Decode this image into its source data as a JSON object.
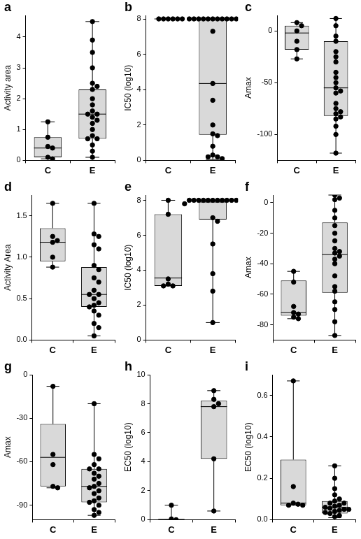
{
  "chart_data": [
    {
      "type": "box",
      "title": "a",
      "y_label": "Activity area",
      "categories": [
        "C",
        "E"
      ],
      "color": "#d9d9d9",
      "grid": false,
      "ylim": [
        0,
        4.7
      ],
      "yticks": [
        0,
        1,
        2,
        3,
        4
      ],
      "boxes": [
        {
          "min": 0.05,
          "q1": 0.1,
          "median": 0.4,
          "q3": 0.75,
          "max": 1.25
        },
        {
          "min": 0.1,
          "q1": 0.7,
          "median": 1.5,
          "q3": 2.3,
          "max": 4.5
        }
      ],
      "points": [
        [
          1.25,
          0.75,
          0.45,
          0.4,
          0.1,
          0.05
        ],
        [
          4.5,
          3.9,
          3.5,
          3.0,
          2.5,
          2.4,
          2.3,
          2.0,
          1.8,
          1.6,
          1.5,
          1.5,
          1.4,
          1.3,
          1.2,
          1.0,
          0.8,
          0.7,
          0.7,
          0.5,
          0.3,
          0.1
        ]
      ]
    },
    {
      "type": "box",
      "title": "b",
      "y_label": "IC50 (log10)",
      "categories": [
        "C",
        "E"
      ],
      "color": "#d9d9d9",
      "grid": false,
      "ylim": [
        0,
        8.2
      ],
      "yticks": [
        0,
        2,
        4,
        6,
        8
      ],
      "boxes": [
        {
          "min": 8,
          "q1": 8,
          "median": 8,
          "q3": 8,
          "max": 8
        },
        {
          "min": 0.05,
          "q1": 1.45,
          "median": 4.35,
          "q3": 8,
          "max": 8
        }
      ],
      "points": [
        [
          8,
          8,
          8,
          8,
          8,
          8
        ],
        [
          8,
          8,
          8,
          8,
          8,
          8,
          8,
          8,
          8,
          8,
          8,
          7.3,
          4.35,
          3.4,
          2.0,
          1.5,
          1.4,
          0.8,
          0.3,
          0.2,
          0.2,
          0.1
        ]
      ]
    },
    {
      "type": "box",
      "title": "c",
      "y_label": "Amax",
      "categories": [
        "C",
        "E"
      ],
      "color": "#d9d9d9",
      "grid": false,
      "ylim": [
        -125,
        15
      ],
      "yticks": [
        -100,
        -50,
        0
      ],
      "boxes": [
        {
          "min": -27,
          "q1": -18,
          "median": -2,
          "q3": 5,
          "max": 8
        },
        {
          "min": -118,
          "q1": -82,
          "median": -55,
          "q3": -10,
          "max": 12
        }
      ],
      "points": [
        [
          8,
          5,
          0,
          -10,
          -18,
          -27
        ],
        [
          12,
          5,
          -5,
          -10,
          -20,
          -25,
          -30,
          -40,
          -45,
          -50,
          -55,
          -58,
          -60,
          -70,
          -75,
          -78,
          -80,
          -83,
          -85,
          -92,
          -100,
          -118
        ]
      ]
    },
    {
      "type": "box",
      "title": "d",
      "y_label": "Activity Area",
      "categories": [
        "C",
        "E"
      ],
      "color": "#d9d9d9",
      "grid": false,
      "ylim": [
        0,
        1.75
      ],
      "yticks": [
        {
          "value": 0,
          "label": "0.0"
        },
        0.5,
        {
          "value": 1,
          "label": "1.0"
        },
        1.5
      ],
      "boxes": [
        {
          "min": 0.88,
          "q1": 0.95,
          "median": 1.18,
          "q3": 1.35,
          "max": 1.65
        },
        {
          "min": 0.05,
          "q1": 0.4,
          "median": 0.55,
          "q3": 0.88,
          "max": 1.65
        }
      ],
      "points": [
        [
          1.65,
          1.25,
          1.2,
          1.18,
          1.0,
          0.88
        ],
        [
          1.65,
          1.28,
          1.25,
          1.15,
          1.1,
          0.9,
          0.85,
          0.75,
          0.7,
          0.6,
          0.55,
          0.55,
          0.5,
          0.45,
          0.42,
          0.4,
          0.35,
          0.3,
          0.2,
          0.15,
          0.05
        ]
      ]
    },
    {
      "type": "box",
      "title": "e",
      "y_label": "IC50 (log10)",
      "categories": [
        "C",
        "E"
      ],
      "color": "#d9d9d9",
      "grid": false,
      "ylim": [
        0,
        8.3
      ],
      "yticks": [
        0,
        2,
        4,
        6,
        8
      ],
      "boxes": [
        {
          "min": 3.1,
          "q1": 3.1,
          "median": 3.55,
          "q3": 7.2,
          "max": 8
        },
        {
          "min": 1.0,
          "q1": 6.9,
          "median": 7.9,
          "q3": 8,
          "max": 8
        }
      ],
      "points": [
        [
          8.0,
          7.2,
          3.5,
          3.2,
          3.1,
          3.1
        ],
        [
          8,
          8,
          8,
          8,
          8,
          8,
          8,
          8,
          8,
          8,
          8,
          8,
          7.8,
          7.0,
          6.8,
          5.5,
          3.8,
          2.8,
          1.0
        ]
      ]
    },
    {
      "type": "box",
      "title": "f",
      "y_label": "Amax",
      "categories": [
        "C",
        "E"
      ],
      "color": "#d9d9d9",
      "grid": false,
      "ylim": [
        -90,
        5
      ],
      "yticks": [
        -80,
        -60,
        -40,
        -20,
        0
      ],
      "boxes": [
        {
          "min": -76,
          "q1": -74,
          "median": -72,
          "q3": -51,
          "max": -45
        },
        {
          "min": -87,
          "q1": -59,
          "median": -34,
          "q3": -13,
          "max": 5
        }
      ],
      "points": [
        [
          -45,
          -52,
          -68,
          -72,
          -73,
          -75,
          -76
        ],
        [
          5,
          3,
          2,
          -5,
          -10,
          -15,
          -20,
          -25,
          -30,
          -32,
          -33,
          -35,
          -37,
          -40,
          -48,
          -55,
          -58,
          -65,
          -70,
          -78,
          -87
        ]
      ]
    },
    {
      "type": "box",
      "title": "g",
      "y_label": "Amax",
      "categories": [
        "C",
        "E"
      ],
      "color": "#d9d9d9",
      "grid": false,
      "ylim": [
        -100,
        0
      ],
      "yticks": [
        -90,
        -60,
        -30,
        0
      ],
      "boxes": [
        {
          "min": -78,
          "q1": -77,
          "median": -57,
          "q3": -34,
          "max": -8
        },
        {
          "min": -97,
          "q1": -88,
          "median": -77,
          "q3": -65,
          "max": -20
        }
      ],
      "points": [
        [
          -8,
          -55,
          -62,
          -77,
          -78
        ],
        [
          -20,
          -55,
          -58,
          -62,
          -65,
          -65,
          -68,
          -70,
          -72,
          -75,
          -77,
          -78,
          -80,
          -82,
          -85,
          -87,
          -88,
          -90,
          -93,
          -95,
          -97
        ]
      ]
    },
    {
      "type": "box",
      "title": "h",
      "y_label": "EC50 (log10)",
      "categories": [
        "C",
        "E"
      ],
      "color": "#d9d9d9",
      "grid": false,
      "ylim": [
        0,
        10
      ],
      "yticks": [
        0,
        2,
        4,
        6,
        8,
        10
      ],
      "boxes": [
        {
          "min": 0,
          "q1": 0,
          "median": 0,
          "q3": 0.05,
          "max": 1.0
        },
        {
          "min": 0.6,
          "q1": 4.2,
          "median": 7.8,
          "q3": 8.2,
          "max": 8.9
        }
      ],
      "points": [
        [
          1.0,
          0.05,
          0
        ],
        [
          8.9,
          8.3,
          8.0,
          7.8,
          4.2,
          0.6
        ]
      ]
    },
    {
      "type": "box",
      "title": "i",
      "y_label": "EC50 (log10)",
      "categories": [
        "C",
        "E"
      ],
      "color": "#d9d9d9",
      "grid": false,
      "ylim": [
        0,
        0.7
      ],
      "yticks": [
        {
          "value": 0,
          "label": "0.0"
        },
        0.2,
        0.4,
        0.6
      ],
      "boxes": [
        {
          "min": 0.07,
          "q1": 0.07,
          "median": 0.08,
          "q3": 0.29,
          "max": 0.67
        },
        {
          "min": 0.01,
          "q1": 0.03,
          "median": 0.06,
          "q3": 0.09,
          "max": 0.26
        }
      ],
      "points": [
        [
          0.67,
          0.16,
          0.08,
          0.075,
          0.07,
          0.07
        ],
        [
          0.26,
          0.2,
          0.15,
          0.12,
          0.1,
          0.09,
          0.08,
          0.08,
          0.07,
          0.065,
          0.06,
          0.055,
          0.05,
          0.05,
          0.045,
          0.04,
          0.035,
          0.03,
          0.02,
          0.015
        ]
      ]
    }
  ]
}
